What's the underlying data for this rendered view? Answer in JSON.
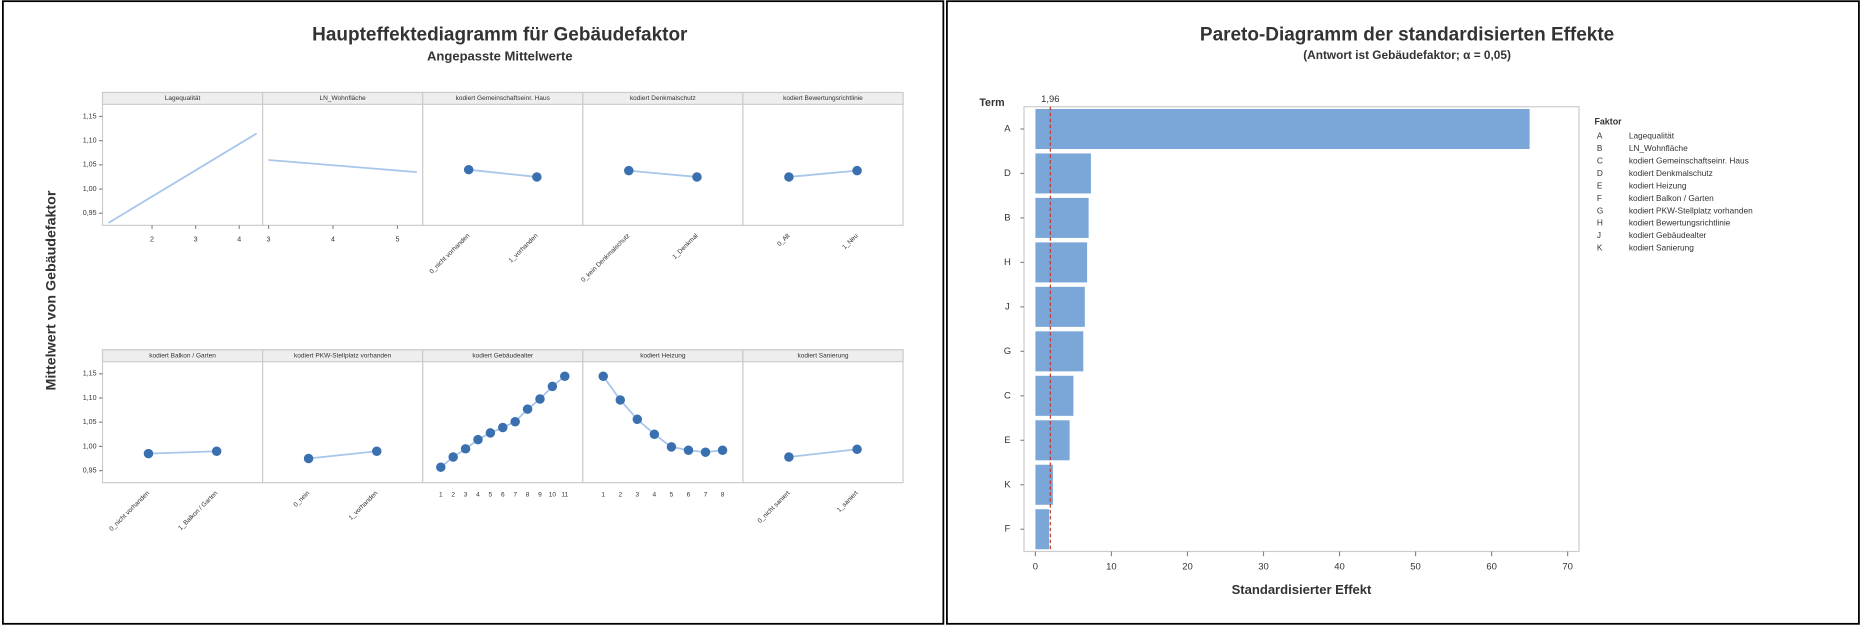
{
  "chart_data": [
    {
      "type": "main-effects",
      "title": "Haupteffektediagramm für Gebäudefaktor",
      "subtitle": "Angepasste Mittelwerte",
      "y_label": "Mittelwert von Gebäudefaktor",
      "ylim": [
        0.925,
        1.175
      ],
      "yticks": [
        {
          "value": 0.95,
          "label": "0,95"
        },
        {
          "value": 1.0,
          "label": "1,00"
        },
        {
          "value": 1.05,
          "label": "1,05"
        },
        {
          "value": 1.1,
          "label": "1,10"
        },
        {
          "value": 1.15,
          "label": "1,15"
        }
      ],
      "line_color": "#a8c6ea",
      "point_color": "#3a6fb0",
      "panels": [
        {
          "type": "line",
          "title": "Lagequalität",
          "x": [
            1,
            4.4
          ],
          "values": [
            0.93,
            1.115
          ],
          "xlim": [
            1,
            4.4
          ],
          "xticks": [
            2,
            3,
            4
          ]
        },
        {
          "type": "line",
          "title": "LN_Wohnfläche",
          "x": [
            3,
            5.3
          ],
          "values": [
            1.06,
            1.035
          ],
          "xlim": [
            3,
            5.3
          ],
          "xticks": [
            3,
            4,
            5
          ]
        },
        {
          "type": "points",
          "title": "kodiert Gemeinschaftseinr. Haus",
          "categories": [
            "0_nicht vorhanden",
            "1_vorhanden"
          ],
          "values": [
            1.04,
            1.025
          ]
        },
        {
          "type": "points",
          "title": "kodiert Denkmalschutz",
          "categories": [
            "0_kein Denkmalschutz",
            "1_Denkmal"
          ],
          "values": [
            1.038,
            1.025
          ]
        },
        {
          "type": "points",
          "title": "kodiert Bewertungsrichtlinie",
          "categories": [
            "0_Alt",
            "1_Neu"
          ],
          "values": [
            1.025,
            1.038
          ]
        },
        {
          "type": "points",
          "title": "kodiert Balkon / Garten",
          "categories": [
            "0_nicht vorhanden",
            "1_Balkon / Garten"
          ],
          "values": [
            0.985,
            0.99
          ]
        },
        {
          "type": "points",
          "title": "kodiert PKW-Stellplatz vorhanden",
          "categories": [
            "0_nein",
            "1_vorhanden"
          ],
          "values": [
            0.975,
            0.99
          ]
        },
        {
          "type": "points",
          "title": "kodiert Gebäudealter",
          "categories": [
            "1",
            "2",
            "3",
            "4",
            "5",
            "6",
            "7",
            "8",
            "9",
            "10",
            "11"
          ],
          "values": [
            0.957,
            0.978,
            0.995,
            1.014,
            1.028,
            1.039,
            1.051,
            1.077,
            1.098,
            1.124,
            1.145
          ]
        },
        {
          "type": "points",
          "title": "kodiert Heizung",
          "categories": [
            "1",
            "2",
            "3",
            "4",
            "5",
            "6",
            "7",
            "8"
          ],
          "values": [
            1.145,
            1.096,
            1.056,
            1.025,
            0.999,
            0.992,
            0.988,
            0.992
          ]
        },
        {
          "type": "points",
          "title": "kodiert Sanierung",
          "categories": [
            "0_nicht saniert",
            "1_saniert"
          ],
          "values": [
            0.978,
            0.994
          ]
        }
      ]
    },
    {
      "type": "pareto",
      "title": "Pareto-Diagramm der standardisierten Effekte",
      "subtitle": "(Antwort ist Gebäudefaktor; α = 0,05)",
      "y_label": "Term",
      "x_label": "Standardisierter Effekt",
      "categories": [
        "A",
        "D",
        "B",
        "H",
        "J",
        "G",
        "C",
        "E",
        "K",
        "F"
      ],
      "values": [
        65,
        7.3,
        7.0,
        6.8,
        6.5,
        6.3,
        5.0,
        4.5,
        2.3,
        1.8
      ],
      "color": "#7aa6d8",
      "xlim": [
        -1.5,
        71.5
      ],
      "xticks": [
        0,
        10,
        20,
        30,
        40,
        50,
        60,
        70
      ],
      "reference": {
        "value": 1.96,
        "label": "1,96"
      },
      "reference_color": "#c0392b",
      "legend_title": "Faktor",
      "legend": [
        {
          "letter": "A",
          "name": "Lagequalität"
        },
        {
          "letter": "B",
          "name": "LN_Wohnfläche"
        },
        {
          "letter": "C",
          "name": "kodiert Gemeinschaftseinr. Haus"
        },
        {
          "letter": "D",
          "name": "kodiert Denkmalschutz"
        },
        {
          "letter": "E",
          "name": "kodiert Heizung"
        },
        {
          "letter": "F",
          "name": "kodiert Balkon / Garten"
        },
        {
          "letter": "G",
          "name": "kodiert PKW-Stellplatz vorhanden"
        },
        {
          "letter": "H",
          "name": "kodiert Bewertungsrichtlinie"
        },
        {
          "letter": "J",
          "name": "kodiert Gebäudealter"
        },
        {
          "letter": "K",
          "name": "kodiert Sanierung"
        }
      ]
    }
  ]
}
